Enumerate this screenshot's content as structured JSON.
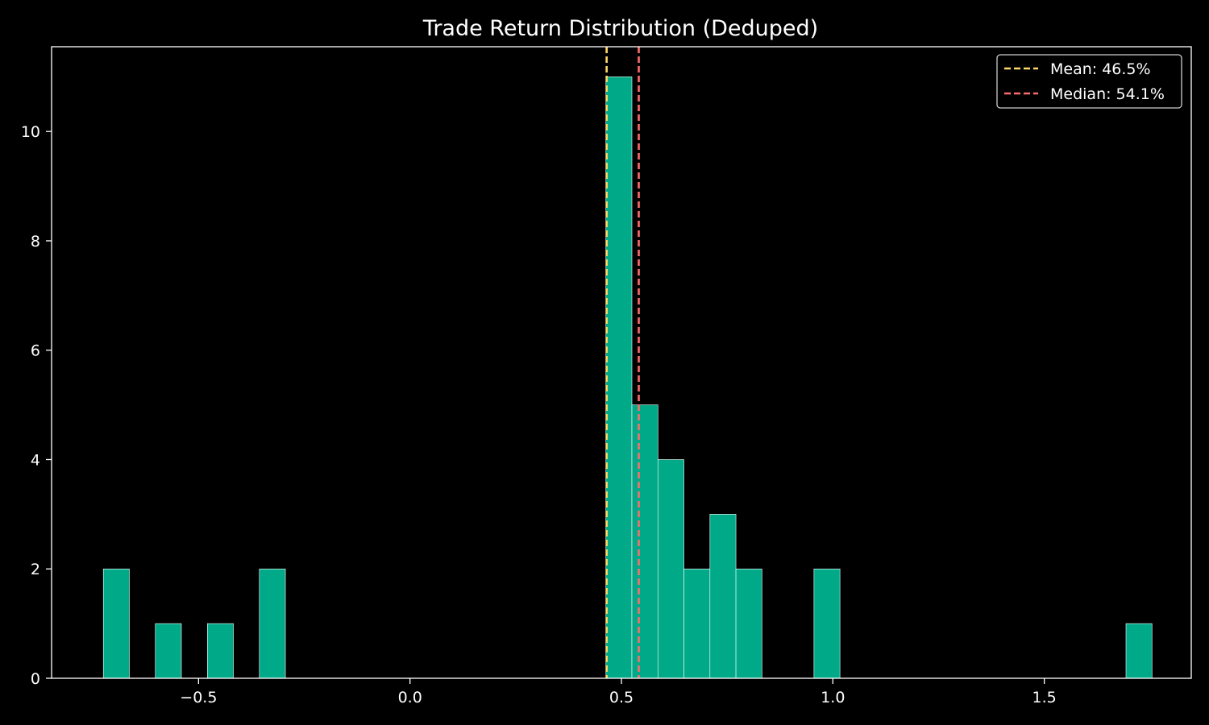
{
  "chart_data": {
    "type": "bar",
    "title": "Trade Return Distribution (Deduped)",
    "xlabel": "",
    "ylabel": "",
    "xlim": [
      -0.8476,
      1.8476
    ],
    "ylim": [
      0,
      11.55
    ],
    "bin_width": 0.0615,
    "x_ticks": [
      -0.5,
      0.0,
      0.5,
      1.0,
      1.5
    ],
    "x_tick_labels": [
      "−0.5",
      "0.0",
      "0.5",
      "1.0",
      "1.5"
    ],
    "y_ticks": [
      0,
      2,
      4,
      6,
      8,
      10
    ],
    "y_tick_labels": [
      "0",
      "2",
      "4",
      "6",
      "8",
      "10"
    ],
    "bins": [
      {
        "left": -0.7252,
        "count": 2
      },
      {
        "left": -0.6022,
        "count": 1
      },
      {
        "left": -0.4792,
        "count": 1
      },
      {
        "left": -0.3562,
        "count": 2
      },
      {
        "left": 0.4633,
        "count": 11
      },
      {
        "left": 0.5248,
        "count": 5
      },
      {
        "left": 0.5863,
        "count": 4
      },
      {
        "left": 0.6478,
        "count": 2
      },
      {
        "left": 0.7093,
        "count": 3
      },
      {
        "left": 0.7708,
        "count": 2
      },
      {
        "left": 0.9553,
        "count": 2
      },
      {
        "left": 1.6932,
        "count": 1
      }
    ],
    "bar_color": "#00aa88",
    "bar_edge_color": "#ffffff",
    "reference_lines": [
      {
        "label": "Mean: 46.5%",
        "x": 0.465,
        "color": "#ffd966"
      },
      {
        "label": "Median: 54.1%",
        "x": 0.541,
        "color": "#ff6b6b"
      }
    ],
    "legend_position": "top-right",
    "grid": false
  }
}
